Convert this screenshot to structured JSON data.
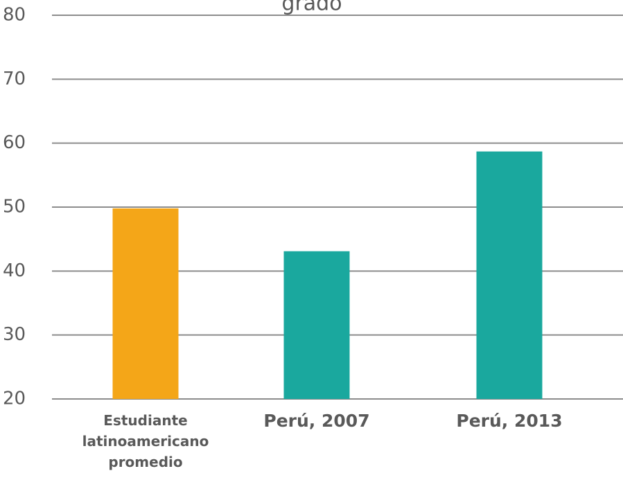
{
  "chart_data": {
    "type": "bar",
    "title": "grado",
    "categories": [
      "Estudiante latinoamericano promedio",
      "Perú, 2007",
      "Perú, 2013"
    ],
    "values": [
      49.8,
      43.1,
      58.7
    ],
    "colors": [
      "#f4a618",
      "#1aa89e",
      "#1aa89e"
    ],
    "ylim": [
      20,
      80
    ],
    "yticks": [
      20,
      30,
      40,
      50,
      60,
      70,
      80
    ],
    "grid": true
  }
}
